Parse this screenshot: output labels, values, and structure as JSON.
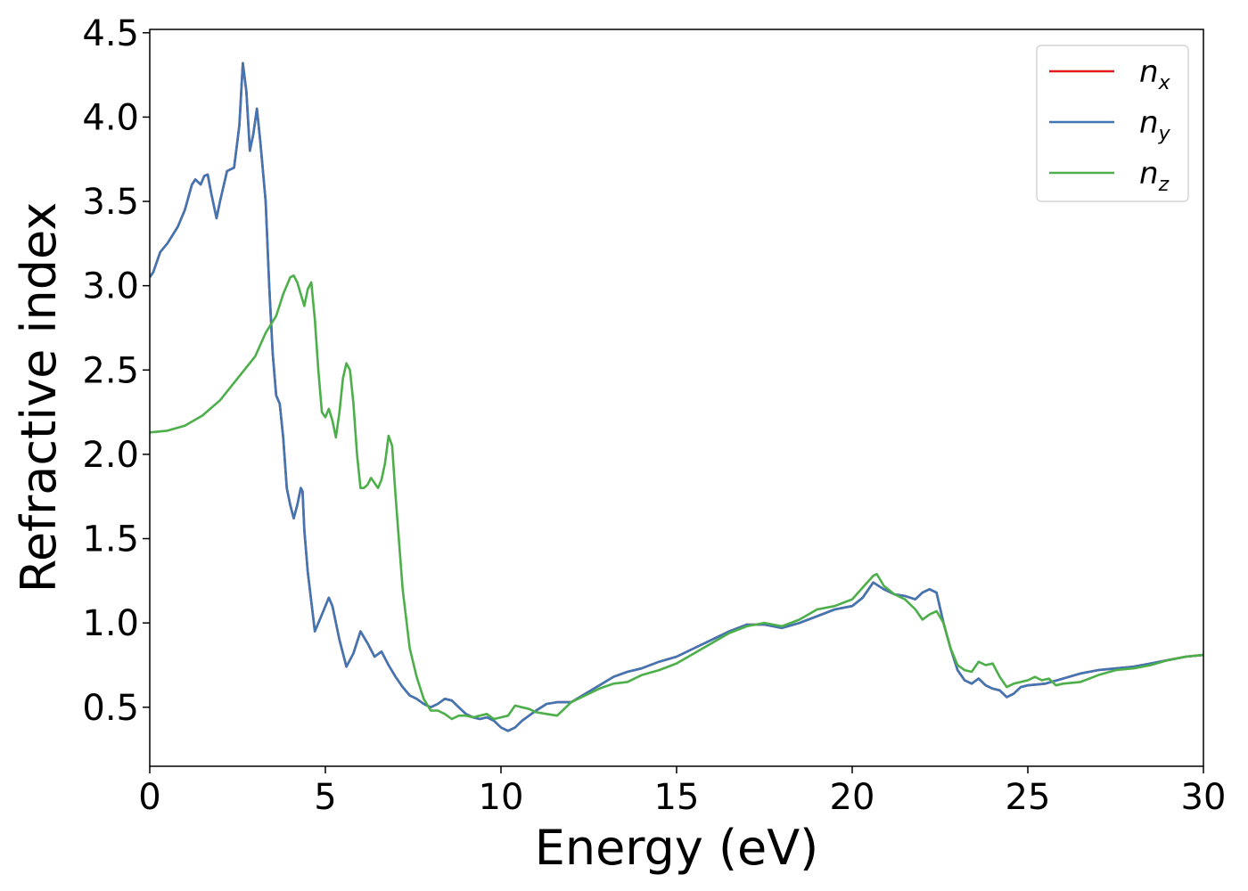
{
  "chart_data": {
    "type": "line",
    "title": "",
    "xlabel": "Energy (eV)",
    "ylabel": "Refractive index",
    "xlim": [
      0,
      30
    ],
    "ylim": [
      0.15,
      4.52
    ],
    "x_ticks": [
      0,
      5,
      10,
      15,
      20,
      25,
      30
    ],
    "x_tick_labels": [
      "0",
      "5",
      "10",
      "15",
      "20",
      "25",
      "30"
    ],
    "y_ticks": [
      0.5,
      1.0,
      1.5,
      2.0,
      2.5,
      3.0,
      3.5,
      4.0,
      4.5
    ],
    "y_tick_labels": [
      "0.5",
      "1.0",
      "1.5",
      "2.0",
      "2.5",
      "3.0",
      "3.5",
      "4.0",
      "4.5"
    ],
    "grid": false,
    "legend_position": "top-right",
    "series": [
      {
        "name": "n_x",
        "label_base": "n",
        "label_sub": "x",
        "color": "#e41a1c",
        "x": [
          0,
          0.1,
          0.3,
          0.5,
          0.8,
          1.0,
          1.2,
          1.3,
          1.45,
          1.55,
          1.65,
          1.75,
          1.9,
          2.0,
          2.2,
          2.4,
          2.55,
          2.65,
          2.75,
          2.85,
          2.95,
          3.05,
          3.15,
          3.3,
          3.4,
          3.5,
          3.6,
          3.7,
          3.8,
          3.9,
          4.0,
          4.1,
          4.2,
          4.3,
          4.35,
          4.4,
          4.5,
          4.7,
          4.9,
          5.1,
          5.2,
          5.4,
          5.6,
          5.8,
          6.0,
          6.2,
          6.4,
          6.6,
          6.8,
          7.0,
          7.2,
          7.4,
          7.6,
          7.8,
          8.0,
          8.2,
          8.4,
          8.6,
          8.8,
          9.0,
          9.2,
          9.4,
          9.6,
          9.8,
          10.0,
          10.2,
          10.4,
          10.6,
          10.8,
          11.0,
          11.3,
          11.6,
          12.0,
          12.4,
          12.8,
          13.2,
          13.6,
          14.0,
          14.5,
          15.0,
          15.5,
          16.0,
          16.5,
          17.0,
          17.5,
          18.0,
          18.5,
          19.0,
          19.5,
          20.0,
          20.3,
          20.6,
          20.9,
          21.2,
          21.5,
          21.8,
          22.0,
          22.2,
          22.4,
          22.6,
          22.8,
          23.0,
          23.2,
          23.4,
          23.6,
          23.8,
          24.0,
          24.2,
          24.4,
          24.6,
          24.8,
          25.0,
          25.5,
          26.0,
          26.5,
          27.0,
          27.5,
          28.0,
          28.5,
          29.0,
          29.5,
          30.0
        ],
        "y": [
          3.05,
          3.08,
          3.2,
          3.25,
          3.35,
          3.45,
          3.6,
          3.63,
          3.6,
          3.65,
          3.66,
          3.55,
          3.4,
          3.5,
          3.68,
          3.7,
          3.95,
          4.32,
          4.15,
          3.8,
          3.9,
          4.05,
          3.85,
          3.5,
          3.0,
          2.6,
          2.35,
          2.3,
          2.1,
          1.8,
          1.7,
          1.62,
          1.7,
          1.8,
          1.78,
          1.55,
          1.3,
          0.95,
          1.05,
          1.15,
          1.1,
          0.9,
          0.74,
          0.82,
          0.95,
          0.88,
          0.8,
          0.83,
          0.75,
          0.68,
          0.62,
          0.57,
          0.55,
          0.52,
          0.5,
          0.52,
          0.55,
          0.54,
          0.5,
          0.46,
          0.44,
          0.43,
          0.44,
          0.42,
          0.38,
          0.36,
          0.38,
          0.42,
          0.45,
          0.48,
          0.52,
          0.53,
          0.53,
          0.58,
          0.63,
          0.68,
          0.71,
          0.73,
          0.77,
          0.8,
          0.85,
          0.9,
          0.95,
          0.99,
          0.99,
          0.97,
          1.0,
          1.04,
          1.08,
          1.1,
          1.15,
          1.24,
          1.2,
          1.17,
          1.16,
          1.14,
          1.18,
          1.2,
          1.18,
          1.0,
          0.85,
          0.72,
          0.66,
          0.64,
          0.67,
          0.63,
          0.61,
          0.6,
          0.56,
          0.58,
          0.62,
          0.63,
          0.64,
          0.67,
          0.7,
          0.72,
          0.73,
          0.74,
          0.76,
          0.78,
          0.8,
          0.81
        ]
      },
      {
        "name": "n_y",
        "label_base": "n",
        "label_sub": "y",
        "color": "#3f76b3",
        "x": [
          0,
          0.1,
          0.3,
          0.5,
          0.8,
          1.0,
          1.2,
          1.3,
          1.45,
          1.55,
          1.65,
          1.75,
          1.9,
          2.0,
          2.2,
          2.4,
          2.55,
          2.65,
          2.75,
          2.85,
          2.95,
          3.05,
          3.15,
          3.3,
          3.4,
          3.5,
          3.6,
          3.7,
          3.8,
          3.9,
          4.0,
          4.1,
          4.2,
          4.3,
          4.35,
          4.4,
          4.5,
          4.7,
          4.9,
          5.1,
          5.2,
          5.4,
          5.6,
          5.8,
          6.0,
          6.2,
          6.4,
          6.6,
          6.8,
          7.0,
          7.2,
          7.4,
          7.6,
          7.8,
          8.0,
          8.2,
          8.4,
          8.6,
          8.8,
          9.0,
          9.2,
          9.4,
          9.6,
          9.8,
          10.0,
          10.2,
          10.4,
          10.6,
          10.8,
          11.0,
          11.3,
          11.6,
          12.0,
          12.4,
          12.8,
          13.2,
          13.6,
          14.0,
          14.5,
          15.0,
          15.5,
          16.0,
          16.5,
          17.0,
          17.5,
          18.0,
          18.5,
          19.0,
          19.5,
          20.0,
          20.3,
          20.6,
          20.9,
          21.2,
          21.5,
          21.8,
          22.0,
          22.2,
          22.4,
          22.6,
          22.8,
          23.0,
          23.2,
          23.4,
          23.6,
          23.8,
          24.0,
          24.2,
          24.4,
          24.6,
          24.8,
          25.0,
          25.5,
          26.0,
          26.5,
          27.0,
          27.5,
          28.0,
          28.5,
          29.0,
          29.5,
          30.0
        ],
        "y": [
          3.05,
          3.08,
          3.2,
          3.25,
          3.35,
          3.45,
          3.6,
          3.63,
          3.6,
          3.65,
          3.66,
          3.55,
          3.4,
          3.5,
          3.68,
          3.7,
          3.95,
          4.32,
          4.15,
          3.8,
          3.9,
          4.05,
          3.85,
          3.5,
          3.0,
          2.6,
          2.35,
          2.3,
          2.1,
          1.8,
          1.7,
          1.62,
          1.7,
          1.8,
          1.78,
          1.55,
          1.3,
          0.95,
          1.05,
          1.15,
          1.1,
          0.9,
          0.74,
          0.82,
          0.95,
          0.88,
          0.8,
          0.83,
          0.75,
          0.68,
          0.62,
          0.57,
          0.55,
          0.52,
          0.5,
          0.52,
          0.55,
          0.54,
          0.5,
          0.46,
          0.44,
          0.43,
          0.44,
          0.42,
          0.38,
          0.36,
          0.38,
          0.42,
          0.45,
          0.48,
          0.52,
          0.53,
          0.53,
          0.58,
          0.63,
          0.68,
          0.71,
          0.73,
          0.77,
          0.8,
          0.85,
          0.9,
          0.95,
          0.99,
          0.99,
          0.97,
          1.0,
          1.04,
          1.08,
          1.1,
          1.15,
          1.24,
          1.2,
          1.17,
          1.16,
          1.14,
          1.18,
          1.2,
          1.18,
          1.0,
          0.85,
          0.72,
          0.66,
          0.64,
          0.67,
          0.63,
          0.61,
          0.6,
          0.56,
          0.58,
          0.62,
          0.63,
          0.64,
          0.67,
          0.7,
          0.72,
          0.73,
          0.74,
          0.76,
          0.78,
          0.8,
          0.81
        ]
      },
      {
        "name": "n_z",
        "label_base": "n",
        "label_sub": "z",
        "color": "#4daf4a",
        "x": [
          0,
          0.5,
          1.0,
          1.5,
          2.0,
          2.5,
          3.0,
          3.3,
          3.6,
          3.8,
          4.0,
          4.1,
          4.2,
          4.3,
          4.4,
          4.5,
          4.6,
          4.7,
          4.8,
          4.9,
          5.0,
          5.1,
          5.2,
          5.3,
          5.4,
          5.5,
          5.6,
          5.7,
          5.8,
          5.9,
          6.0,
          6.1,
          6.2,
          6.3,
          6.4,
          6.5,
          6.6,
          6.7,
          6.8,
          6.9,
          7.0,
          7.2,
          7.4,
          7.6,
          7.8,
          8.0,
          8.2,
          8.4,
          8.6,
          8.8,
          9.0,
          9.2,
          9.4,
          9.6,
          9.8,
          10.0,
          10.2,
          10.4,
          10.6,
          10.8,
          11.0,
          11.3,
          11.6,
          12.0,
          12.4,
          12.8,
          13.2,
          13.6,
          14.0,
          14.5,
          15.0,
          15.5,
          16.0,
          16.5,
          17.0,
          17.5,
          18.0,
          18.5,
          19.0,
          19.5,
          20.0,
          20.3,
          20.6,
          20.7,
          20.9,
          21.2,
          21.5,
          21.8,
          22.0,
          22.2,
          22.4,
          22.6,
          22.8,
          23.0,
          23.2,
          23.4,
          23.6,
          23.8,
          24.0,
          24.2,
          24.4,
          24.6,
          24.8,
          25.0,
          25.2,
          25.4,
          25.6,
          25.8,
          26.0,
          26.5,
          27.0,
          27.5,
          28.0,
          28.5,
          29.0,
          29.5,
          30.0
        ],
        "y": [
          2.13,
          2.14,
          2.17,
          2.23,
          2.32,
          2.45,
          2.58,
          2.72,
          2.82,
          2.95,
          3.05,
          3.06,
          3.02,
          2.95,
          2.88,
          2.98,
          3.02,
          2.8,
          2.5,
          2.25,
          2.22,
          2.27,
          2.2,
          2.1,
          2.25,
          2.45,
          2.54,
          2.5,
          2.3,
          2.0,
          1.8,
          1.8,
          1.82,
          1.86,
          1.83,
          1.8,
          1.85,
          1.95,
          2.11,
          2.05,
          1.75,
          1.2,
          0.85,
          0.68,
          0.55,
          0.48,
          0.48,
          0.46,
          0.43,
          0.45,
          0.45,
          0.44,
          0.45,
          0.46,
          0.43,
          0.44,
          0.45,
          0.51,
          0.5,
          0.49,
          0.47,
          0.46,
          0.45,
          0.53,
          0.57,
          0.61,
          0.64,
          0.65,
          0.69,
          0.72,
          0.76,
          0.82,
          0.88,
          0.94,
          0.98,
          1.0,
          0.98,
          1.02,
          1.08,
          1.1,
          1.14,
          1.21,
          1.28,
          1.29,
          1.22,
          1.17,
          1.14,
          1.08,
          1.02,
          1.05,
          1.07,
          1.0,
          0.85,
          0.75,
          0.72,
          0.71,
          0.77,
          0.75,
          0.76,
          0.68,
          0.62,
          0.64,
          0.65,
          0.66,
          0.68,
          0.66,
          0.67,
          0.63,
          0.64,
          0.65,
          0.69,
          0.72,
          0.73,
          0.75,
          0.78,
          0.8,
          0.81
        ]
      }
    ]
  }
}
